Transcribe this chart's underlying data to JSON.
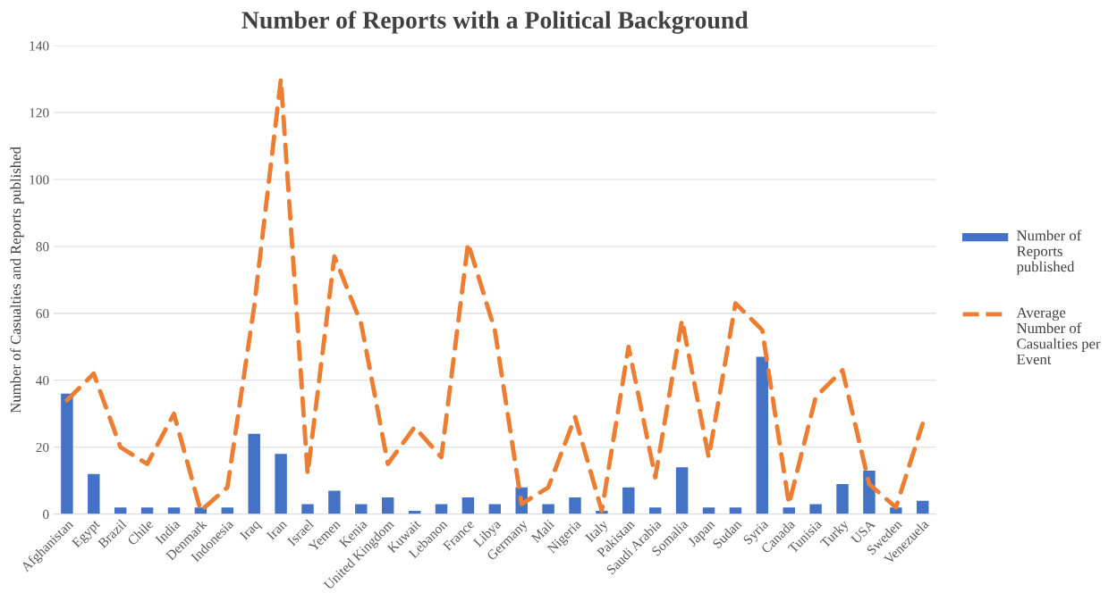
{
  "chart_data": {
    "type": "bar",
    "title": "Number of Reports with a Political Background",
    "ylabel": "Number of Casualties and Reports published",
    "categories": [
      "Afghanistan",
      "Egypt",
      "Brazil",
      "Chile",
      "India",
      "Denmark",
      "Indonesia",
      "Iraq",
      "Iran",
      "Israel",
      "Yemen",
      "Kenia",
      "United Kingdom",
      "Kuwait",
      "Lebanon",
      "France",
      "Libya",
      "Germany",
      "Mali",
      "Nigeria",
      "Italy",
      "Pakistan",
      "Saudi Arabia",
      "Somalia",
      "Japan",
      "Sudan",
      "Syria",
      "Canada",
      "Tunisia",
      "Turky",
      "USA",
      "Sweden",
      "Venezuela"
    ],
    "series": [
      {
        "name": "Number of Reports published",
        "color": "#4472c4",
        "values": [
          36,
          12,
          2,
          2,
          2,
          2,
          2,
          24,
          18,
          3,
          7,
          3,
          5,
          1,
          3,
          5,
          3,
          8,
          3,
          5,
          1,
          8,
          2,
          14,
          2,
          2,
          47,
          2,
          3,
          9,
          13,
          2,
          4
        ]
      },
      {
        "name": "Average Number of Casualties per Event",
        "type": "line",
        "color": "#ed7d31",
        "line_style": "dashed",
        "values": [
          34,
          42,
          20,
          15,
          30,
          1,
          8,
          62,
          130,
          12,
          77,
          57,
          15,
          26,
          17,
          81,
          55,
          3,
          8,
          29,
          1,
          50,
          11,
          58,
          17,
          63,
          55,
          3,
          35,
          43,
          9,
          2,
          27
        ]
      }
    ],
    "ylim": [
      0,
      140
    ],
    "yticks": [
      0,
      20,
      40,
      60,
      80,
      100,
      120,
      140
    ],
    "grid": "y",
    "legend": "right"
  }
}
